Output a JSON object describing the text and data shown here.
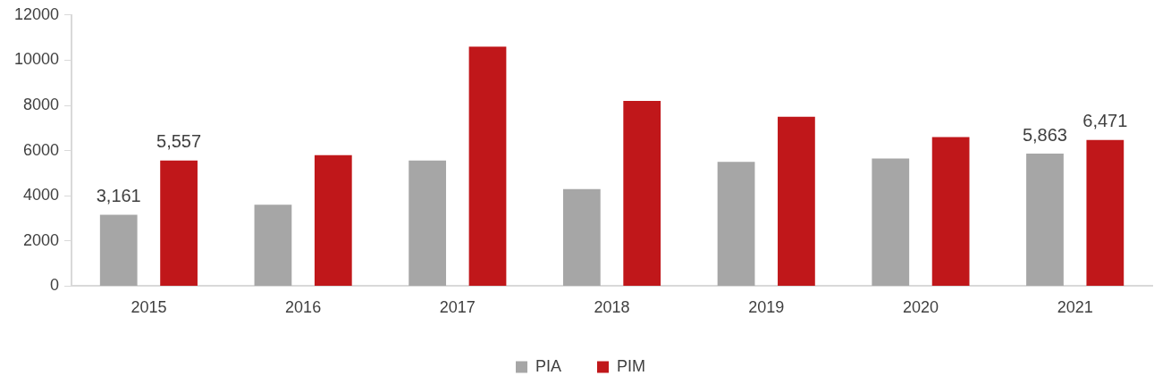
{
  "chart_data": {
    "type": "bar",
    "categories": [
      "2015",
      "2016",
      "2017",
      "2018",
      "2019",
      "2020",
      "2021"
    ],
    "series": [
      {
        "name": "PIA",
        "color": "#a6a6a6",
        "values": [
          3161,
          3600,
          5560,
          4290,
          5500,
          5650,
          5863
        ],
        "value_labels": [
          "3,161",
          null,
          null,
          null,
          null,
          null,
          "5,863"
        ]
      },
      {
        "name": "PIM",
        "color": "#c0171a",
        "values": [
          5557,
          5800,
          10600,
          8200,
          7500,
          6600,
          6471
        ],
        "value_labels": [
          "5,557",
          null,
          null,
          null,
          null,
          null,
          "6,471"
        ]
      }
    ],
    "ylim": [
      0,
      12000
    ],
    "yticks": [
      0,
      2000,
      4000,
      6000,
      8000,
      10000,
      12000
    ],
    "grid": false,
    "legend": "bottom"
  }
}
